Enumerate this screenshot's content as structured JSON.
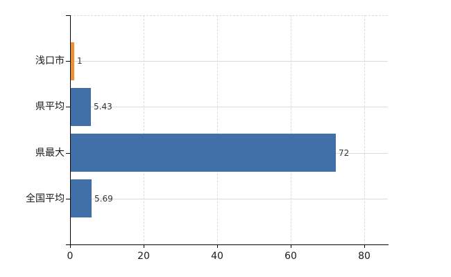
{
  "chart_data": {
    "type": "bar",
    "orientation": "horizontal",
    "title": "",
    "xlabel": "",
    "ylabel": "",
    "categories": [
      "浅口市",
      "県平均",
      "県最大",
      "全国平均"
    ],
    "values": [
      1,
      5.43,
      72,
      5.69
    ],
    "value_labels": [
      "1",
      "5.43",
      "72",
      "5.69"
    ],
    "bar_colors": [
      "#ee9133",
      "#4170a8",
      "#4170a8",
      "#4170a8"
    ],
    "xlim": [
      0,
      86.4
    ],
    "x_ticks": [
      0,
      20,
      40,
      60,
      80
    ],
    "x_tick_labels": [
      "0",
      "20",
      "40",
      "60",
      "80"
    ],
    "grid": {
      "vertical": "dashed light lines at each x tick",
      "horizontal": "solid light line through each category center",
      "plot_top_border": "dashed light line"
    },
    "legend": "none",
    "data_labels_shown": true,
    "colors": {
      "axis": "#000000",
      "gridline": "#d9ded5",
      "category_line": "#d9ded3",
      "value_label_text": "#333333",
      "tick_label_text": "#1a1a1a",
      "background": "#ffffff"
    }
  }
}
